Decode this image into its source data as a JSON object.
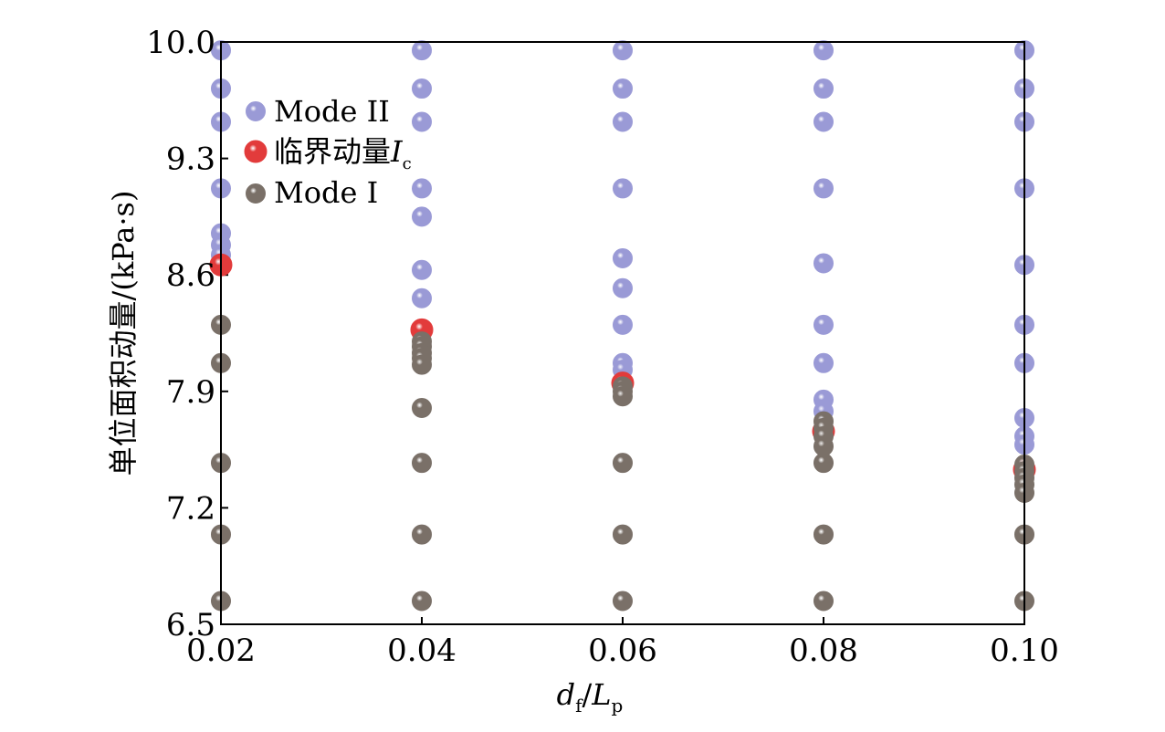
{
  "chart_data": {
    "type": "scatter",
    "xlabel": {
      "main": "d",
      "sub": "f",
      "slash": "/",
      "main2": "L",
      "sub2": "p"
    },
    "ylabel": "单位面积动量/(kPa·s)",
    "xlim": [
      0.02,
      0.1
    ],
    "ylim": [
      6.5,
      10.0
    ],
    "x_ticks": [
      "0.02",
      "0.04",
      "0.06",
      "0.08",
      "0.10"
    ],
    "x_tick_values": [
      0.02,
      0.04,
      0.06,
      0.08,
      0.1
    ],
    "y_ticks": [
      "6.5",
      "7.2",
      "7.9",
      "8.6",
      "9.3",
      "10.0"
    ],
    "y_tick_values": [
      6.5,
      7.2,
      7.9,
      8.6,
      9.3,
      10.0
    ],
    "legend_position": "top-left",
    "series": [
      {
        "name": "Mode II",
        "color": "#9a9ad6",
        "points": [
          [
            0.02,
            9.95
          ],
          [
            0.02,
            9.72
          ],
          [
            0.02,
            9.52
          ],
          [
            0.02,
            9.12
          ],
          [
            0.02,
            8.85
          ],
          [
            0.02,
            8.78
          ],
          [
            0.02,
            8.72
          ],
          [
            0.02,
            8.67
          ],
          [
            0.04,
            9.95
          ],
          [
            0.04,
            9.72
          ],
          [
            0.04,
            9.52
          ],
          [
            0.04,
            9.12
          ],
          [
            0.04,
            8.95
          ],
          [
            0.04,
            8.63
          ],
          [
            0.04,
            8.46
          ],
          [
            0.06,
            9.95
          ],
          [
            0.06,
            9.72
          ],
          [
            0.06,
            9.52
          ],
          [
            0.06,
            9.12
          ],
          [
            0.06,
            8.7
          ],
          [
            0.06,
            8.52
          ],
          [
            0.06,
            8.3
          ],
          [
            0.06,
            8.07
          ],
          [
            0.06,
            8.03
          ],
          [
            0.08,
            9.95
          ],
          [
            0.08,
            9.72
          ],
          [
            0.08,
            9.52
          ],
          [
            0.08,
            9.12
          ],
          [
            0.08,
            8.67
          ],
          [
            0.08,
            8.3
          ],
          [
            0.08,
            8.07
          ],
          [
            0.08,
            7.85
          ],
          [
            0.08,
            7.78
          ],
          [
            0.1,
            9.95
          ],
          [
            0.1,
            9.72
          ],
          [
            0.1,
            9.52
          ],
          [
            0.1,
            9.12
          ],
          [
            0.1,
            8.66
          ],
          [
            0.1,
            8.3
          ],
          [
            0.1,
            8.07
          ],
          [
            0.1,
            7.74
          ],
          [
            0.1,
            7.63
          ],
          [
            0.1,
            7.58
          ]
        ]
      },
      {
        "name": "临界动量",
        "name_italic": "I",
        "name_sub": "c",
        "color": "#e23b3b",
        "points": [
          [
            0.02,
            8.66
          ],
          [
            0.04,
            8.27
          ],
          [
            0.06,
            7.95
          ],
          [
            0.08,
            7.66
          ],
          [
            0.1,
            7.43
          ]
        ]
      },
      {
        "name": "Mode I",
        "color": "#7a7068",
        "points": [
          [
            0.02,
            8.3
          ],
          [
            0.02,
            8.07
          ],
          [
            0.02,
            7.47
          ],
          [
            0.02,
            7.04
          ],
          [
            0.02,
            6.64
          ],
          [
            0.04,
            8.2
          ],
          [
            0.04,
            8.17
          ],
          [
            0.04,
            8.13
          ],
          [
            0.04,
            8.1
          ],
          [
            0.04,
            8.06
          ],
          [
            0.04,
            7.8
          ],
          [
            0.04,
            7.47
          ],
          [
            0.04,
            7.04
          ],
          [
            0.04,
            6.64
          ],
          [
            0.06,
            7.93
          ],
          [
            0.06,
            7.9
          ],
          [
            0.06,
            7.87
          ],
          [
            0.06,
            7.47
          ],
          [
            0.06,
            7.04
          ],
          [
            0.06,
            6.64
          ],
          [
            0.08,
            7.72
          ],
          [
            0.08,
            7.68
          ],
          [
            0.08,
            7.63
          ],
          [
            0.08,
            7.57
          ],
          [
            0.08,
            7.47
          ],
          [
            0.08,
            7.04
          ],
          [
            0.08,
            6.64
          ],
          [
            0.1,
            7.46
          ],
          [
            0.1,
            7.42
          ],
          [
            0.1,
            7.38
          ],
          [
            0.1,
            7.34
          ],
          [
            0.1,
            7.29
          ],
          [
            0.1,
            7.04
          ],
          [
            0.1,
            6.64
          ]
        ]
      }
    ]
  }
}
